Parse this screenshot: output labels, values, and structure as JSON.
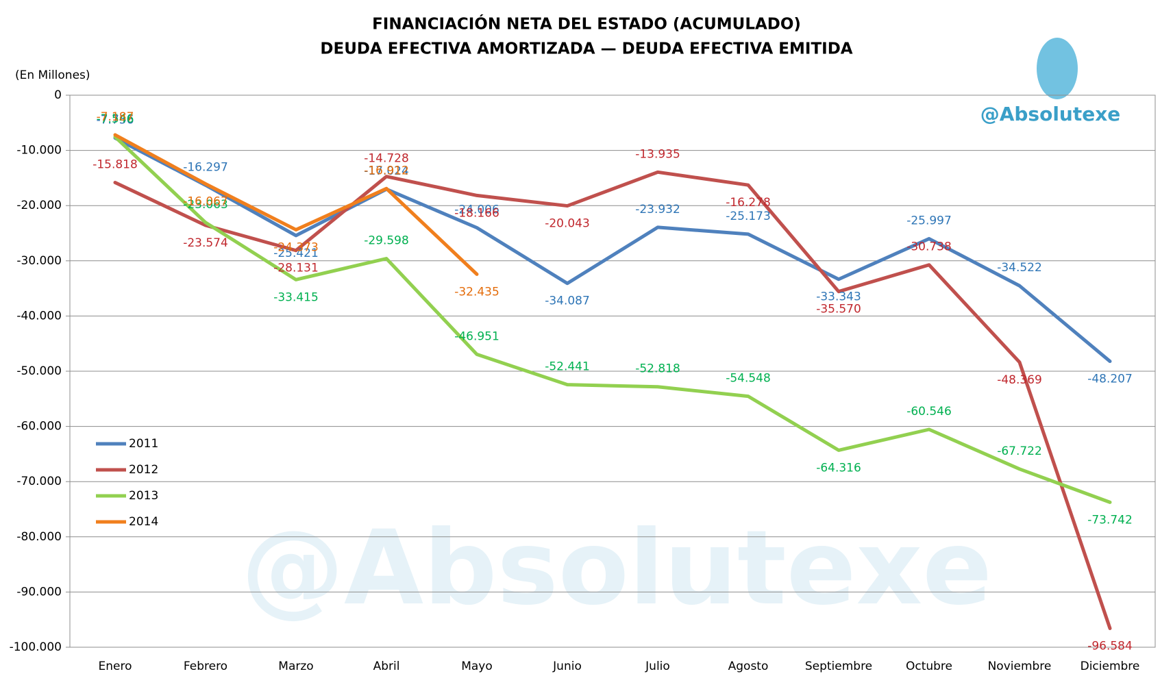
{
  "chart_data": {
    "type": "line",
    "title": "FINANCIACIÓN NETA DEL ESTADO (ACUMULADO)",
    "subtitle": "DEUDA EFECTIVA AMORTIZADA — DEUDA EFECTIVA EMITIDA",
    "y_label": "(En Millones)",
    "watermark": "@Absolutexe",
    "categories": [
      "Enero",
      "Febrero",
      "Marzo",
      "Abril",
      "Mayo",
      "Junio",
      "Julio",
      "Agosto",
      "Septiembre",
      "Octubre",
      "Noviembre",
      "Diciembre"
    ],
    "series": [
      {
        "name": "2011",
        "color": "#4f81bd",
        "label_color": "#2e75b6",
        "values": [
          -7756,
          -16297,
          -25421,
          -17024,
          -24006,
          -34087,
          -23932,
          -25173,
          -33343,
          -25997,
          -34522,
          -48207
        ],
        "value_labels": [
          "-7.756",
          "-16.297",
          "-25.421",
          "-17.024",
          "-24.006",
          "-34.087",
          "-23.932",
          "-25.173",
          "-33.343",
          "-25.997",
          "-34.522",
          "-48.207"
        ]
      },
      {
        "name": "2012",
        "color": "#c0504d",
        "label_color": "#c0272d",
        "values": [
          -15818,
          -23574,
          -28131,
          -14728,
          -18166,
          -20043,
          -13935,
          -16278,
          -35570,
          -30738,
          -48369,
          -96584
        ],
        "value_labels": [
          "-15.818",
          "-23.574",
          "-28.131",
          "-14.728",
          "-18.166",
          "-20.043",
          "-13.935",
          "-16.278",
          "-35.570",
          "-30.738",
          "-48.369",
          "-96.584"
        ]
      },
      {
        "name": "2013",
        "color": "#92d050",
        "label_color": "#00b050",
        "values": [
          -7546,
          -23063,
          -33415,
          -29598,
          -46951,
          -52441,
          -52818,
          -54548,
          -64316,
          -60546,
          -67722,
          -73742
        ],
        "value_labels": [
          "-7.546",
          "-23.063",
          "-33.415",
          "-29.598",
          "-46.951",
          "-52.441",
          "-52.818",
          "-54.548",
          "-64.316",
          "-60.546",
          "-67.722",
          "-73.742"
        ]
      },
      {
        "name": "2014",
        "color": "#f07f1d",
        "label_color": "#e46c0a",
        "values": [
          -7187,
          -16067,
          -24373,
          -16912,
          -32435,
          null,
          null,
          null,
          null,
          null,
          null,
          null
        ],
        "value_labels": [
          "-7.187",
          "-16.067",
          "-24.373",
          "-16.912",
          "-32.435",
          null,
          null,
          null,
          null,
          null,
          null,
          null
        ]
      }
    ],
    "ylim": [
      -100000,
      0
    ],
    "yticks": [
      0,
      {
        "value": -10000,
        "label": "-10.000"
      },
      {
        "value": -20000,
        "label": "-20.000"
      },
      {
        "value": -30000,
        "label": "-30.000"
      },
      {
        "value": -40000,
        "label": "-40.000"
      },
      {
        "value": -50000,
        "label": "-50.000"
      },
      {
        "value": -60000,
        "label": "-60.000"
      },
      {
        "value": -70000,
        "label": "-70.000"
      },
      {
        "value": -80000,
        "label": "-80.000"
      },
      {
        "value": -90000,
        "label": "-90.000"
      },
      {
        "value": -100000,
        "label": "-100.000"
      }
    ],
    "grid": true,
    "legend": "lower-left"
  }
}
